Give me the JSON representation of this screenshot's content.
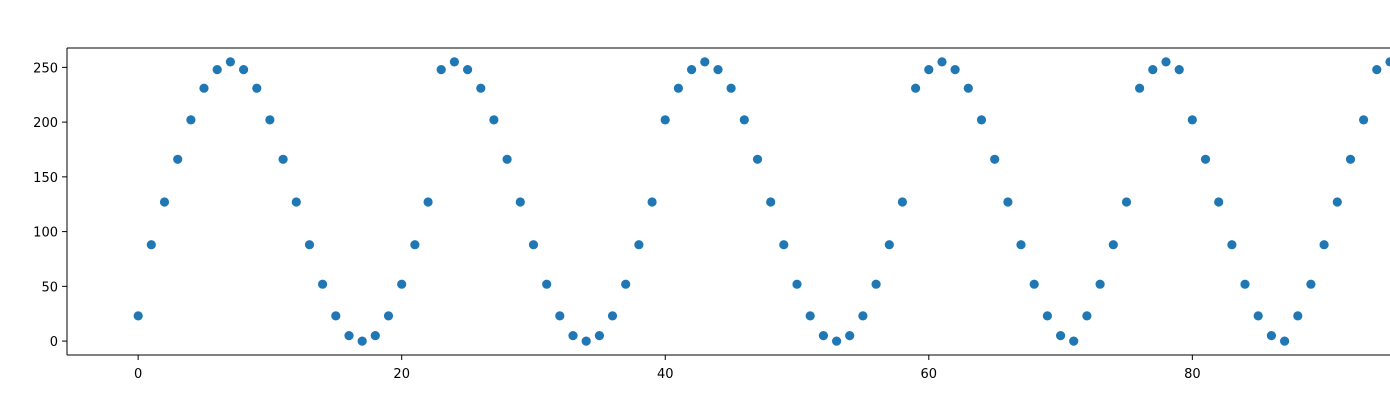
{
  "chart_data": {
    "type": "scatter",
    "title": "",
    "xlabel": "",
    "ylabel": "",
    "xlim": [
      -5.4,
      95
    ],
    "ylim": [
      -12.7,
      267.7
    ],
    "xticks": [
      0,
      20,
      40,
      60,
      80
    ],
    "yticks": [
      0,
      50,
      100,
      150,
      200,
      250
    ],
    "grid": false,
    "legend": "none",
    "marker_color": "#1f77b4",
    "x": [
      0,
      1,
      2,
      3,
      4,
      5,
      6,
      7,
      8,
      9,
      10,
      11,
      12,
      13,
      14,
      15,
      16,
      17,
      18,
      19,
      20,
      21,
      22,
      23,
      24,
      25,
      26,
      27,
      28,
      29,
      30,
      31,
      32,
      33,
      34,
      35,
      36,
      37,
      38,
      39,
      40,
      41,
      42,
      43,
      44,
      45,
      46,
      47,
      48,
      49,
      50,
      51,
      52,
      53,
      54,
      55,
      56,
      57,
      58,
      59,
      60,
      61,
      62,
      63,
      64,
      65,
      66,
      67,
      68,
      69,
      70,
      71,
      72,
      73,
      74,
      75,
      76,
      77,
      78,
      79,
      80,
      81,
      82,
      83,
      84,
      85,
      86,
      87,
      88,
      89,
      90,
      91,
      92,
      93,
      94,
      95
    ],
    "y": [
      23,
      88,
      127,
      166,
      202,
      231,
      248,
      255,
      248,
      231,
      202,
      166,
      127,
      88,
      52,
      23,
      5,
      0,
      5,
      23,
      52,
      88,
      127,
      248,
      255,
      248,
      231,
      202,
      166,
      127,
      88,
      52,
      23,
      5,
      0,
      5,
      23,
      52,
      88,
      127,
      202,
      231,
      248,
      255,
      248,
      231,
      202,
      166,
      127,
      88,
      52,
      23,
      5,
      0,
      5,
      23,
      52,
      88,
      127,
      231,
      248,
      255,
      248,
      231,
      202,
      166,
      127,
      88,
      52,
      23,
      5,
      0,
      23,
      52,
      88,
      127,
      231,
      248,
      255,
      248,
      202,
      166,
      127,
      88,
      52,
      23,
      5,
      0,
      23,
      52,
      88,
      127,
      166,
      202,
      248,
      255
    ]
  }
}
